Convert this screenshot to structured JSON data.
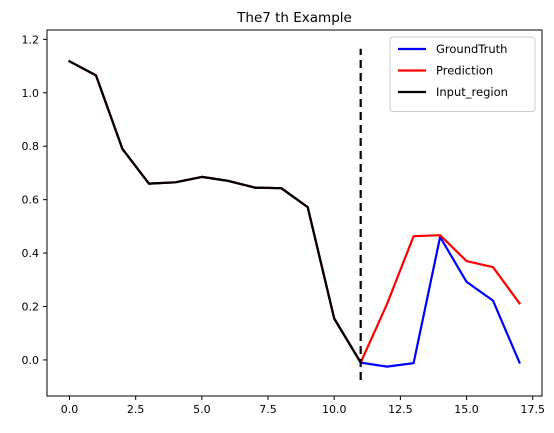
{
  "chart_data": {
    "type": "line",
    "title": "The7 th Example",
    "xlabel": "",
    "ylabel": "",
    "xlim": [
      -0.85,
      17.85
    ],
    "ylim": [
      -0.135,
      1.235
    ],
    "x_ticks": [
      0.0,
      2.5,
      5.0,
      7.5,
      10.0,
      12.5,
      15.0,
      17.5
    ],
    "x_tick_labels": [
      "0.0",
      "2.5",
      "5.0",
      "7.5",
      "10.0",
      "12.5",
      "15.0",
      "17.5"
    ],
    "y_ticks": [
      0.0,
      0.2,
      0.4,
      0.6,
      0.8,
      1.0,
      1.2
    ],
    "y_tick_labels": [
      "0.0",
      "0.2",
      "0.4",
      "0.6",
      "0.8",
      "1.0",
      "1.2"
    ],
    "grid": false,
    "legend_position": "top-right",
    "series": [
      {
        "name": "GroundTruth",
        "color": "#0000ff",
        "x": [
          0,
          1,
          2,
          3,
          4,
          5,
          6,
          7,
          8,
          9,
          10,
          11,
          12,
          13,
          14,
          15,
          16,
          17
        ],
        "values": [
          1.118,
          1.065,
          0.79,
          0.66,
          0.665,
          0.685,
          0.67,
          0.645,
          0.643,
          0.572,
          0.155,
          -0.01,
          -0.025,
          -0.012,
          0.46,
          0.292,
          0.222,
          -0.01
        ]
      },
      {
        "name": "Prediction",
        "color": "#ff0000",
        "x": [
          0,
          1,
          2,
          3,
          4,
          5,
          6,
          7,
          8,
          9,
          10,
          11,
          12,
          13,
          14,
          15,
          16,
          17
        ],
        "values": [
          1.118,
          1.065,
          0.79,
          0.66,
          0.665,
          0.685,
          0.67,
          0.645,
          0.643,
          0.572,
          0.155,
          -0.01,
          0.21,
          0.463,
          0.467,
          0.37,
          0.347,
          0.212
        ]
      },
      {
        "name": "Input_region",
        "color": "#000000",
        "x": [
          0,
          1,
          2,
          3,
          4,
          5,
          6,
          7,
          8,
          9,
          10,
          11
        ],
        "values": [
          1.118,
          1.065,
          0.79,
          0.66,
          0.665,
          0.685,
          0.67,
          0.645,
          0.643,
          0.572,
          0.155,
          -0.01
        ]
      }
    ],
    "vertical_line": {
      "x": 11,
      "ymin": -0.075,
      "ymax": 1.165,
      "color": "#000000",
      "style": "dashed"
    }
  }
}
